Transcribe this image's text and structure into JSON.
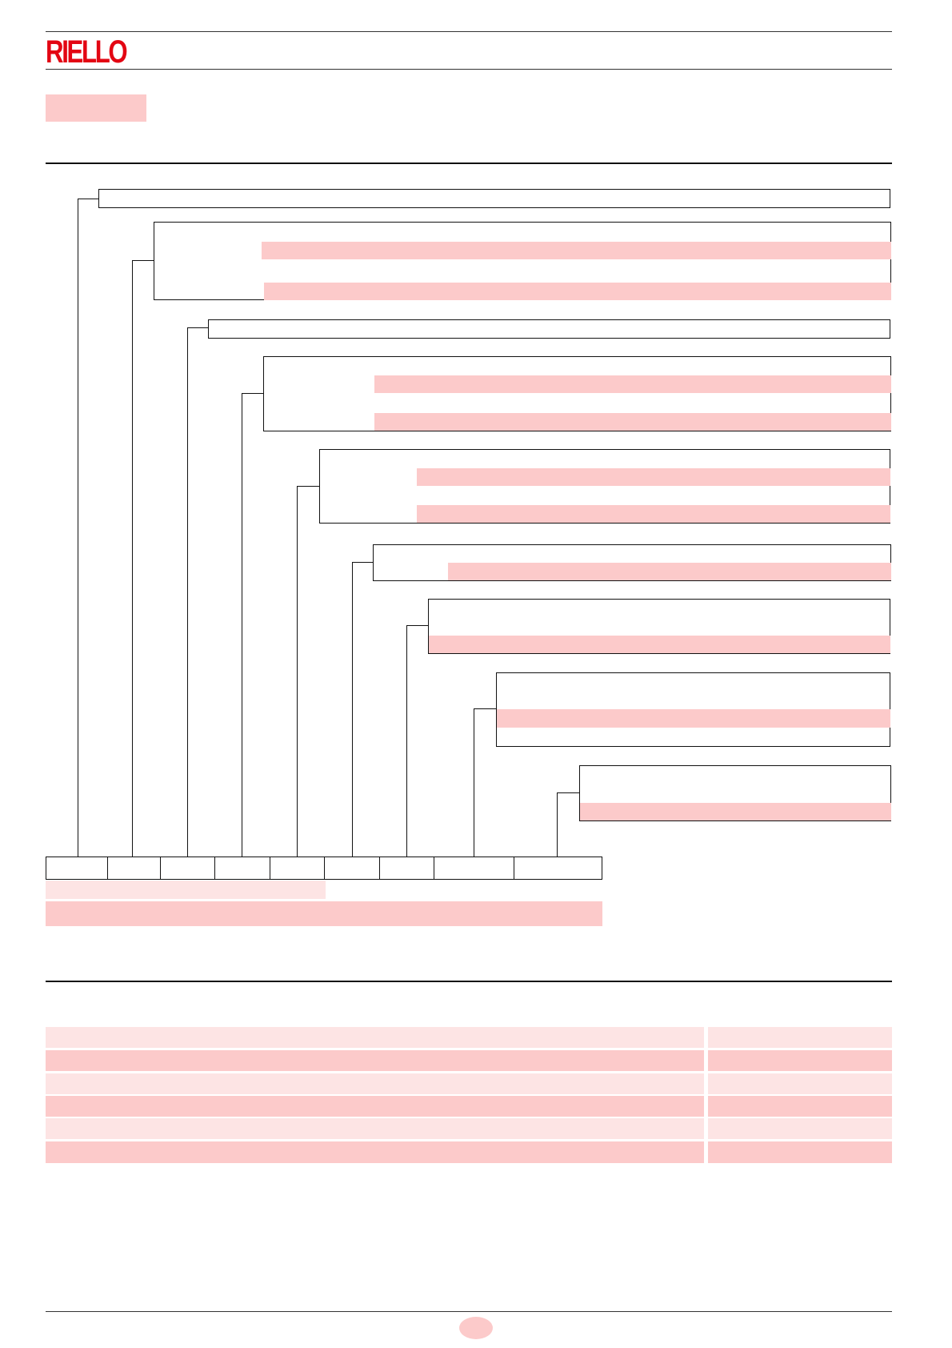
{
  "header": {
    "logo_text": "RIELLO",
    "brand_color": "#e30613"
  },
  "colors": {
    "highlight": "#fccaca",
    "highlight_light": "#fde4e4",
    "line": "#111111"
  }
}
